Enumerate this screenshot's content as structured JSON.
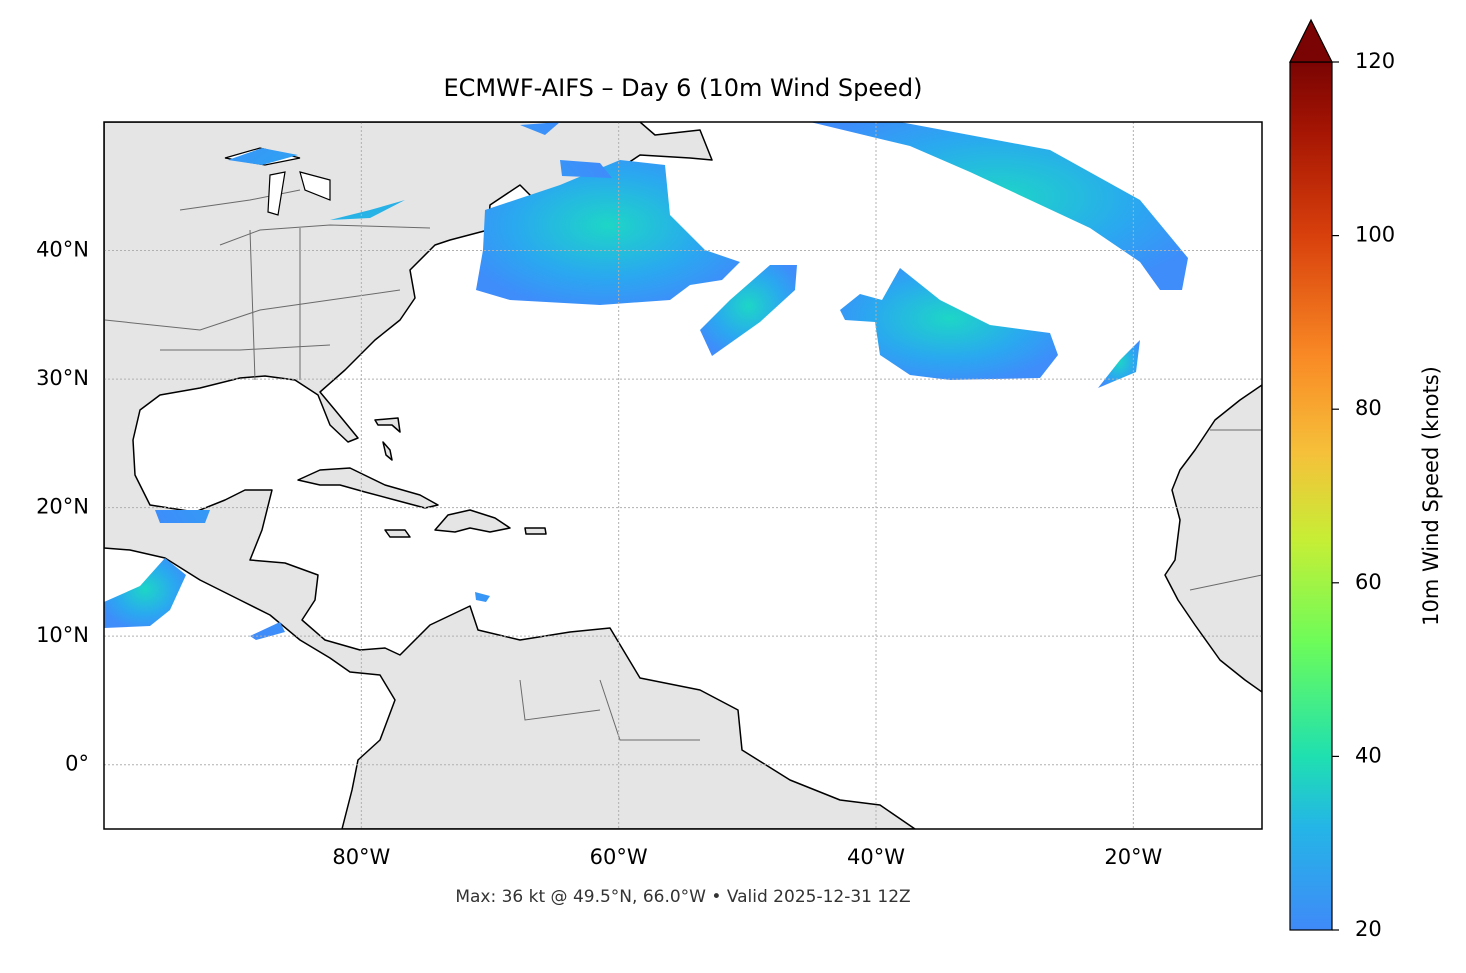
{
  "chart_data": {
    "type": "map",
    "title": "ECMWF-AIFS – Day 6 (10m Wind Speed)",
    "footer": "Max: 36 kt @ 49.5°N, 66.0°W • Valid 2025-12-31 12Z",
    "colorbar_label": "10m Wind Speed (knots)",
    "xlim": [
      -100,
      -10
    ],
    "ylim": [
      -5,
      50
    ],
    "xticks": [
      {
        "value": -80,
        "label": "80°W"
      },
      {
        "value": -60,
        "label": "60°W"
      },
      {
        "value": -40,
        "label": "40°W"
      },
      {
        "value": -20,
        "label": "20°W"
      }
    ],
    "yticks": [
      {
        "value": 0,
        "label": "0°"
      },
      {
        "value": 10,
        "label": "10°N"
      },
      {
        "value": 20,
        "label": "20°N"
      },
      {
        "value": 30,
        "label": "30°N"
      },
      {
        "value": 40,
        "label": "40°N"
      }
    ],
    "clim": [
      20,
      120
    ],
    "cticks": [
      20,
      40,
      60,
      80,
      100,
      120
    ],
    "grid": true
  }
}
